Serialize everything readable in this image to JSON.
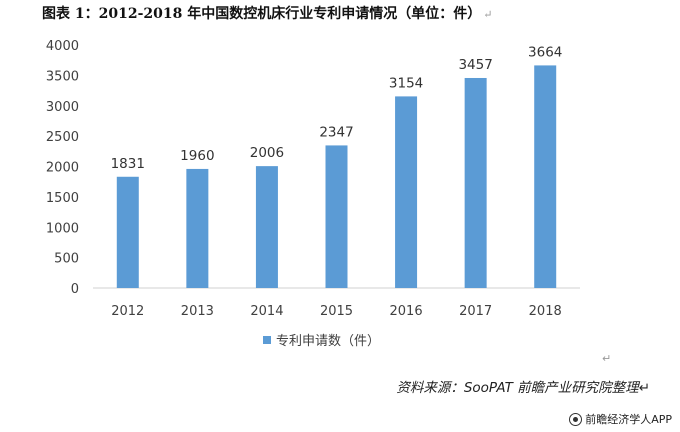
{
  "header": {
    "title": "图表 1：2012-2018 年中国数控机床行业专利申请情况（单位：件）",
    "para_mark": "↵"
  },
  "chart_data": {
    "type": "bar",
    "categories": [
      "2012",
      "2013",
      "2014",
      "2015",
      "2016",
      "2017",
      "2018"
    ],
    "series": [
      {
        "name": "专利申请数（件）",
        "values": [
          1831,
          1960,
          2006,
          2347,
          3154,
          3457,
          3664
        ],
        "color": "#5b9bd5"
      }
    ],
    "ylim": [
      0,
      4000
    ],
    "yticks": [
      0,
      500,
      1000,
      1500,
      2000,
      2500,
      3000,
      3500,
      4000
    ],
    "grid": false,
    "legend": "bottom",
    "data_labels": true
  },
  "footer": {
    "source": "资料来源：SooPAT 前瞻产业研究院整理↵",
    "watermark": "前瞻经济学人APP",
    "watermark_icon": "weibo-icon"
  }
}
